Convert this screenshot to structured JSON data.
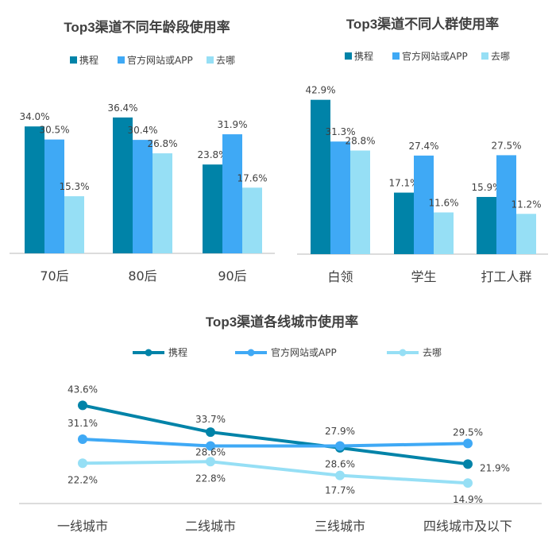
{
  "colors": {
    "ctrip": "#0083A8",
    "official": "#3FA9F5",
    "qunar": "#96DFF5",
    "axis": "#D0D0D0"
  },
  "chart_data": [
    {
      "type": "bar",
      "title": "Top3渠道不同年龄段使用率",
      "categories": [
        "70后",
        "80后",
        "90后"
      ],
      "series": [
        {
          "name": "携程",
          "values": [
            34.0,
            36.4,
            23.8
          ],
          "labels": [
            "34.0%",
            "36.4%",
            "23.8%"
          ]
        },
        {
          "name": "官方网站或APP",
          "values": [
            30.5,
            30.4,
            31.9
          ],
          "labels": [
            "30.5%",
            "30.4%",
            "31.9%"
          ]
        },
        {
          "name": "去哪",
          "values": [
            15.3,
            26.8,
            17.6
          ],
          "labels": [
            "15.3%",
            "26.8%",
            "17.6%"
          ]
        }
      ],
      "unit": "%",
      "legend": "top"
    },
    {
      "type": "bar",
      "title": "Top3渠道不同人群使用率",
      "categories": [
        "白领",
        "学生",
        "打工人群"
      ],
      "series": [
        {
          "name": "携程",
          "values": [
            42.9,
            17.1,
            15.9
          ],
          "labels": [
            "42.9%",
            "17.1%",
            "15.9%"
          ]
        },
        {
          "name": "官方网站或APP",
          "values": [
            31.3,
            27.4,
            27.5
          ],
          "labels": [
            "31.3%",
            "27.4%",
            "27.5%"
          ]
        },
        {
          "name": "去哪",
          "values": [
            28.8,
            11.6,
            11.2
          ],
          "labels": [
            "28.8%",
            "11.6%",
            "11.2%"
          ]
        }
      ],
      "unit": "%",
      "legend": "top"
    },
    {
      "type": "line",
      "title": "Top3渠道各线城市使用率",
      "categories": [
        "一线城市",
        "二线城市",
        "三线城市",
        "四线城市及以下"
      ],
      "series": [
        {
          "name": "携程",
          "values": [
            43.6,
            33.7,
            27.9,
            21.9
          ],
          "labels": [
            "43.6%",
            "33.7%",
            "27.9%",
            "21.9%"
          ]
        },
        {
          "name": "官方网站或APP",
          "values": [
            31.1,
            28.6,
            28.6,
            29.5
          ],
          "labels": [
            "31.1%",
            "28.6%",
            "28.6%",
            "29.5%"
          ]
        },
        {
          "name": "去哪",
          "values": [
            22.2,
            22.8,
            17.7,
            14.9
          ],
          "labels": [
            "22.2%",
            "22.8%",
            "17.7%",
            "14.9%"
          ]
        }
      ],
      "unit": "%",
      "legend": "top"
    }
  ]
}
